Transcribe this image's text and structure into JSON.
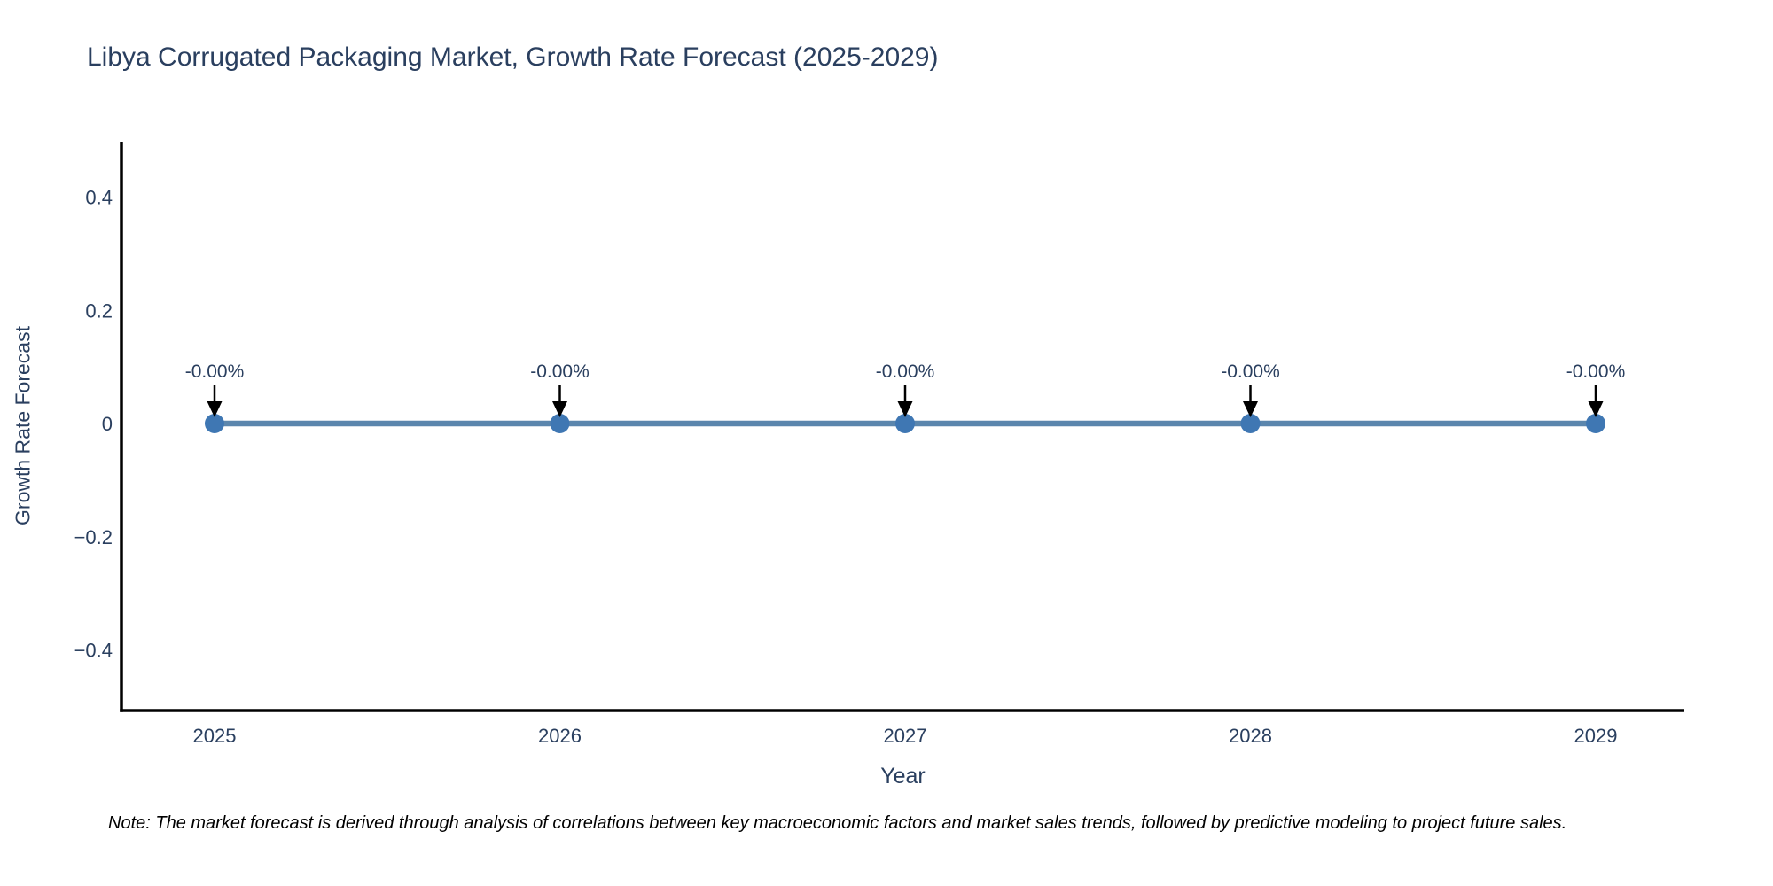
{
  "note": "Note: The market forecast is derived through analysis of correlations between key macroeconomic factors and market sales trends, followed by predictive modeling to project future sales.",
  "chart_data": {
    "type": "line",
    "title": "Libya Corrugated Packaging Market, Growth Rate Forecast (2025-2029)",
    "xlabel": "Year",
    "ylabel": "Growth Rate Forecast",
    "categories": [
      "2025",
      "2026",
      "2027",
      "2028",
      "2029"
    ],
    "values": [
      0,
      0,
      0,
      0,
      0
    ],
    "point_labels": [
      "-0.00%",
      "-0.00%",
      "-0.00%",
      "-0.00%",
      "-0.00%"
    ],
    "yticks": {
      "values": [
        0.4,
        0.2,
        0,
        -0.2,
        -0.4
      ],
      "labels": [
        "0.4",
        "0.2",
        "0",
        "−0.2",
        "−0.4"
      ]
    },
    "ylim": [
      -0.51,
      0.5
    ],
    "grid": false,
    "legend": "none",
    "colors": {
      "line": "#5b86ad",
      "marker": "#3f77b3",
      "arrow": "#000000",
      "axis": "#000000",
      "text": "#2a3f5f"
    }
  }
}
